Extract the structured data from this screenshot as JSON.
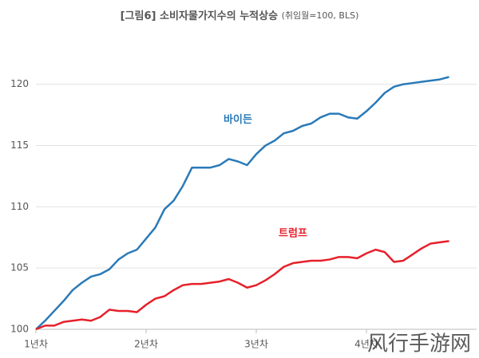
{
  "chart_data": {
    "type": "line",
    "title": "[그림6] 소비자물가지수의 누적상승",
    "subtitle": "(취임월=100, BLS)",
    "x": [
      0,
      1,
      2,
      3,
      4,
      5,
      6,
      7,
      8,
      9,
      10,
      11,
      12,
      13,
      14,
      15,
      16,
      17,
      18,
      19,
      20,
      21,
      22,
      23,
      24,
      25,
      26,
      27,
      28,
      29,
      30,
      31,
      32,
      33,
      34,
      35,
      36,
      37,
      38,
      39,
      40,
      41,
      42,
      43,
      44,
      45
    ],
    "series": [
      {
        "name": "바이든",
        "color": "#2a7ab8",
        "values": [
          100,
          100.7,
          101.5,
          102.3,
          103.2,
          103.8,
          104.3,
          104.5,
          104.9,
          105.7,
          106.2,
          106.5,
          107.4,
          108.3,
          109.8,
          110.5,
          111.7,
          113.2,
          113.2,
          113.2,
          113.4,
          113.9,
          113.7,
          113.4,
          114.3,
          115.0,
          115.4,
          116.0,
          116.2,
          116.6,
          116.8,
          117.3,
          117.6,
          117.6,
          117.3,
          117.2,
          117.8,
          118.5,
          119.3,
          119.8,
          120.0,
          120.1,
          120.2,
          120.3,
          120.4,
          120.6
        ]
      },
      {
        "name": "트럼프",
        "color": "#e6202a",
        "values": [
          100,
          100.3,
          100.3,
          100.6,
          100.7,
          100.8,
          100.7,
          101.0,
          101.6,
          101.5,
          101.5,
          101.4,
          102.0,
          102.5,
          102.7,
          103.2,
          103.6,
          103.7,
          103.7,
          103.8,
          103.9,
          104.1,
          103.8,
          103.4,
          103.6,
          104.0,
          104.5,
          105.1,
          105.4,
          105.5,
          105.6,
          105.6,
          105.7,
          105.9,
          105.9,
          105.8,
          106.2,
          106.5,
          106.3,
          105.5,
          105.6,
          106.1,
          106.6,
          107.0,
          107.1,
          107.2
        ]
      }
    ],
    "xlim": [
      0,
      48
    ],
    "xticks": [
      {
        "value": 0,
        "label": "1년차"
      },
      {
        "value": 12,
        "label": "2년차"
      },
      {
        "value": 24,
        "label": "3년차"
      },
      {
        "value": 36,
        "label": "4년차"
      }
    ],
    "ylim": [
      100,
      122
    ],
    "yticks": [
      100,
      105,
      110,
      115,
      120
    ],
    "grid": true,
    "watermark": "风行手游网"
  }
}
